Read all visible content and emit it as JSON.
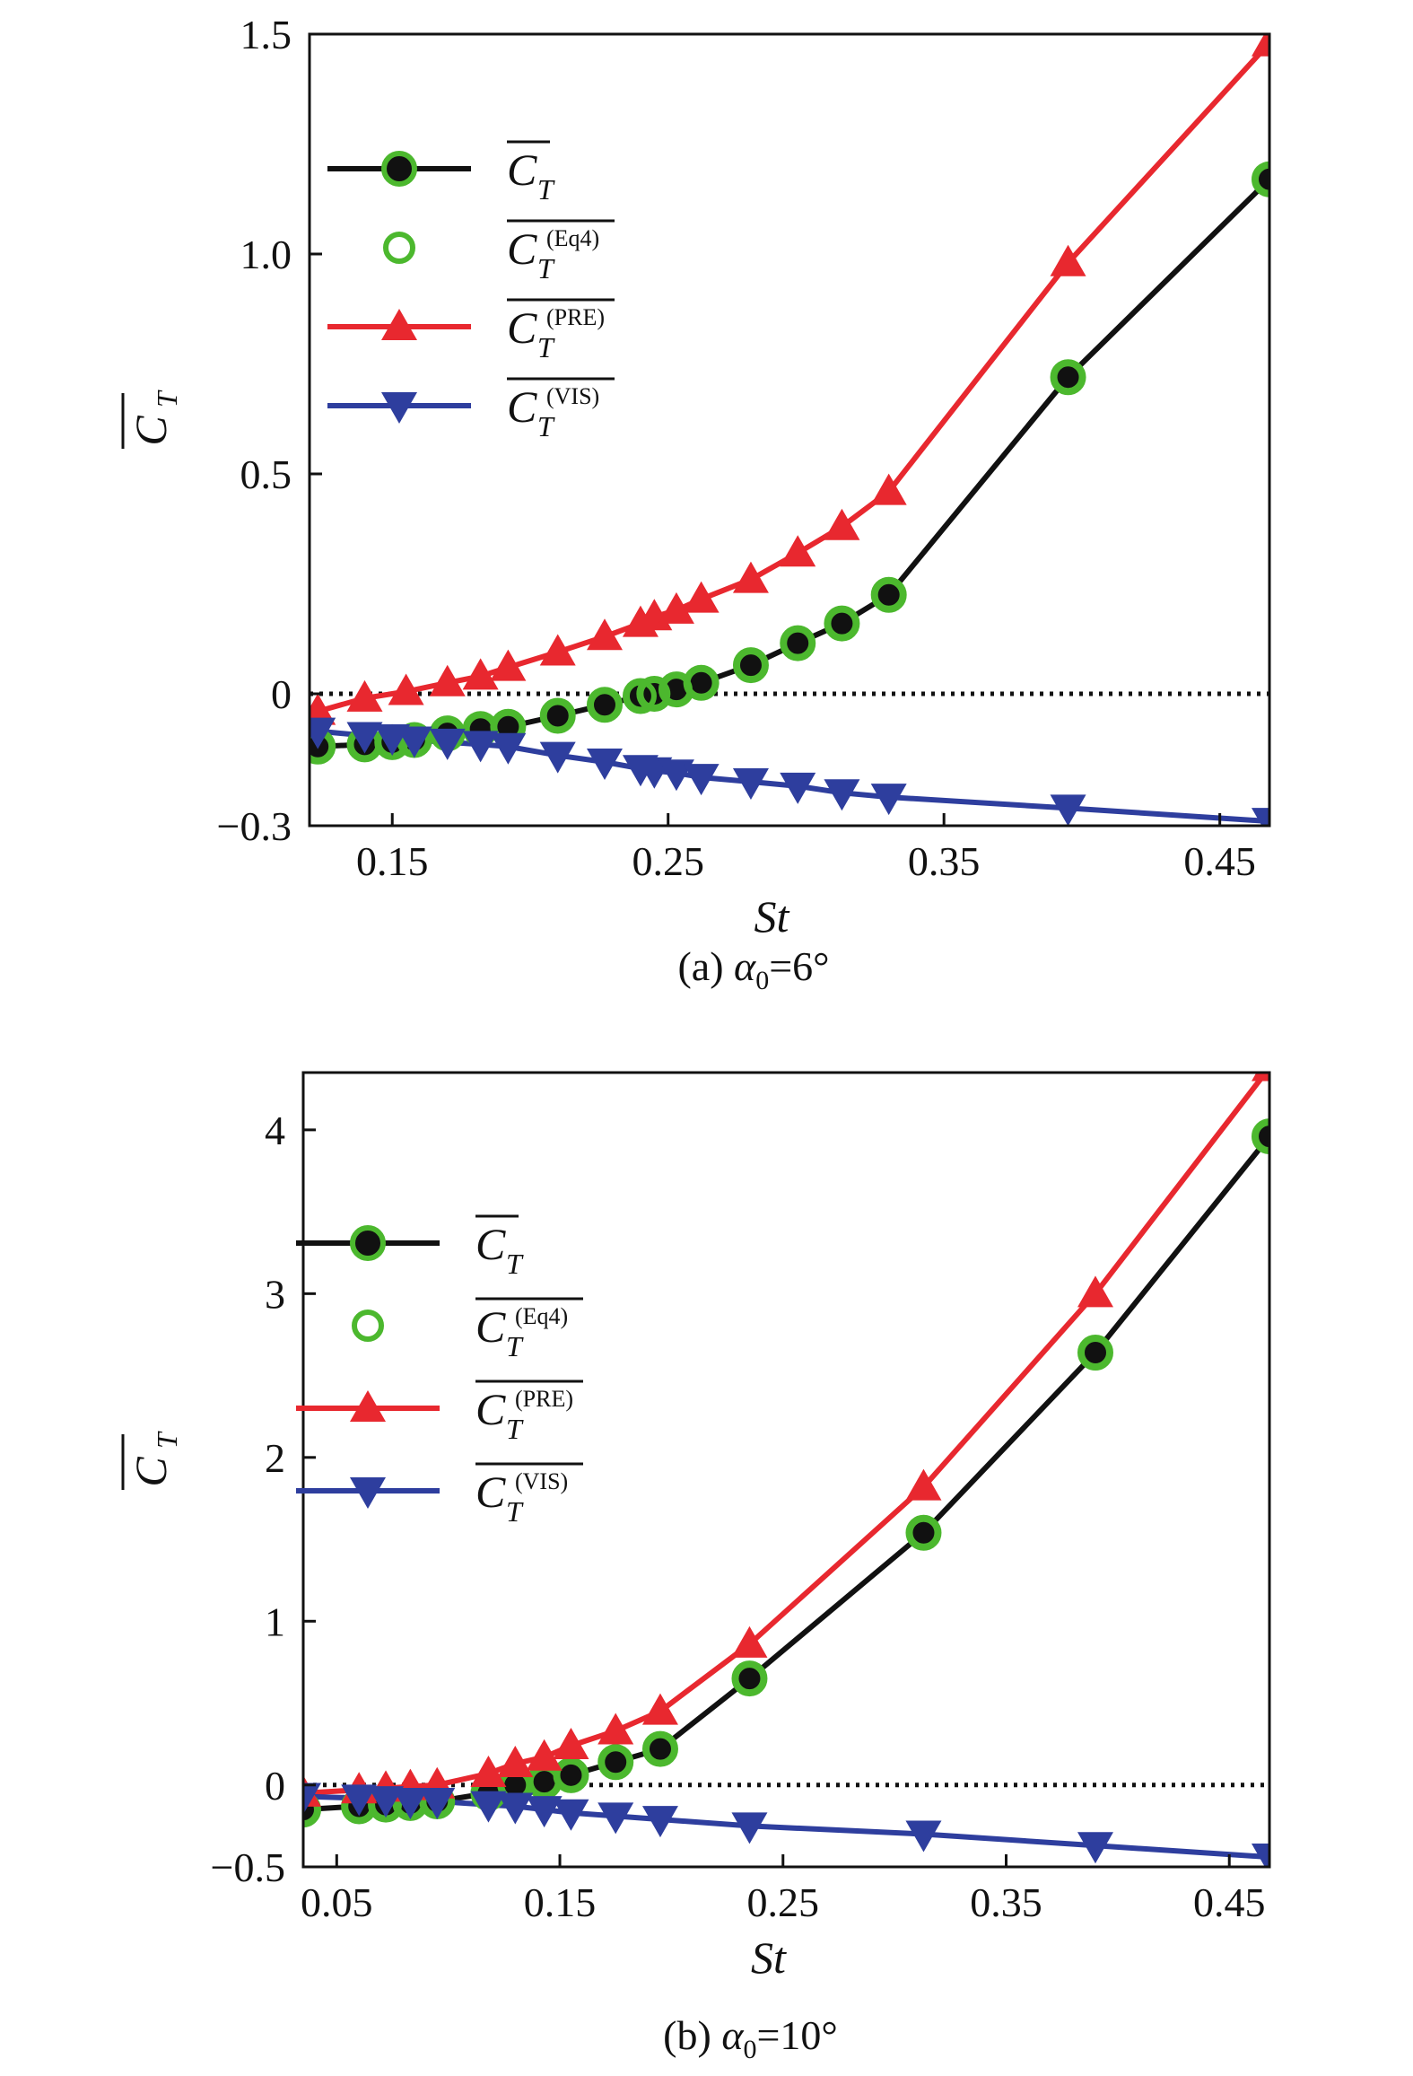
{
  "colors": {
    "ct": "#111111",
    "eq4": "#4cb82e",
    "pre": "#e8282f",
    "vis": "#2e3e9e",
    "axis": "#111111"
  },
  "chart_data": [
    {
      "type": "line",
      "caption": "(a) α₀=6°",
      "caption_prefix": "(a)",
      "caption_alpha": "α",
      "caption_sub": "0",
      "caption_value": "=6°",
      "xlabel": "St",
      "ylabel_main": "C",
      "ylabel_sub": "T",
      "xlim": [
        0.12,
        0.468
      ],
      "ylim": [
        -0.3,
        1.5
      ],
      "xticks": [
        0.15,
        0.25,
        0.35,
        0.45
      ],
      "xtick_labels": [
        "0.15",
        "0.25",
        "0.35",
        "0.45"
      ],
      "yticks": [
        -0.3,
        0,
        0.5,
        1.0,
        1.5
      ],
      "ytick_labels": [
        "−0.3",
        "0",
        "0.5",
        "1.0",
        "1.5"
      ],
      "zero_line": true,
      "legend": {
        "position": "upper-left",
        "entries": [
          {
            "key": "ct",
            "main": "C",
            "sub": "T",
            "sup": ""
          },
          {
            "key": "eq4",
            "main": "C",
            "sub": "T",
            "sup": "(Eq4)"
          },
          {
            "key": "pre",
            "main": "C",
            "sub": "T",
            "sup": "(PRE)"
          },
          {
            "key": "vis",
            "main": "C",
            "sub": "T",
            "sup": "(VIS)"
          }
        ]
      },
      "series": [
        {
          "key": "ct",
          "name": "C_T",
          "marker": "circle-filled",
          "x": [
            0.123,
            0.14,
            0.15,
            0.158,
            0.17,
            0.182,
            0.192,
            0.21,
            0.227,
            0.24,
            0.245,
            0.253,
            0.262,
            0.28,
            0.297,
            0.313,
            0.33,
            0.395,
            0.468
          ],
          "y": [
            -0.12,
            -0.115,
            -0.11,
            -0.105,
            -0.09,
            -0.08,
            -0.075,
            -0.05,
            -0.025,
            -0.005,
            0.0,
            0.01,
            0.025,
            0.065,
            0.115,
            0.16,
            0.225,
            0.72,
            1.17
          ]
        },
        {
          "key": "eq4",
          "name": "C_T^(Eq4)",
          "marker": "circle-open",
          "x": [
            0.123,
            0.14,
            0.15,
            0.158,
            0.17,
            0.182,
            0.192,
            0.21,
            0.227,
            0.24,
            0.245,
            0.253,
            0.262,
            0.28,
            0.297,
            0.313,
            0.33,
            0.395,
            0.468
          ],
          "y": [
            -0.12,
            -0.115,
            -0.11,
            -0.105,
            -0.09,
            -0.08,
            -0.075,
            -0.05,
            -0.025,
            -0.005,
            0.0,
            0.01,
            0.025,
            0.065,
            0.115,
            0.16,
            0.225,
            0.72,
            1.17
          ]
        },
        {
          "key": "pre",
          "name": "C_T^(PRE)",
          "marker": "triangle-up",
          "x": [
            0.123,
            0.14,
            0.155,
            0.17,
            0.182,
            0.192,
            0.21,
            0.227,
            0.24,
            0.245,
            0.253,
            0.262,
            0.28,
            0.297,
            0.313,
            0.33,
            0.395,
            0.468
          ],
          "y": [
            -0.04,
            -0.01,
            0.005,
            0.025,
            0.04,
            0.06,
            0.095,
            0.13,
            0.16,
            0.175,
            0.19,
            0.215,
            0.26,
            0.32,
            0.38,
            0.46,
            0.98,
            1.48
          ]
        },
        {
          "key": "vis",
          "name": "C_T^(VIS)",
          "marker": "triangle-down",
          "x": [
            0.123,
            0.14,
            0.15,
            0.158,
            0.17,
            0.182,
            0.192,
            0.21,
            0.227,
            0.24,
            0.245,
            0.253,
            0.262,
            0.28,
            0.297,
            0.313,
            0.33,
            0.395,
            0.468
          ],
          "y": [
            -0.085,
            -0.095,
            -0.1,
            -0.105,
            -0.11,
            -0.115,
            -0.12,
            -0.14,
            -0.155,
            -0.17,
            -0.175,
            -0.18,
            -0.19,
            -0.2,
            -0.21,
            -0.225,
            -0.235,
            -0.26,
            -0.29
          ]
        }
      ]
    },
    {
      "type": "line",
      "caption": "(b) α₀=10°",
      "caption_prefix": "(b)",
      "caption_alpha": "α",
      "caption_sub": "0",
      "caption_value": "=10°",
      "xlabel": "St",
      "ylabel_main": "C",
      "ylabel_sub": "T",
      "xlim": [
        0.035,
        0.468
      ],
      "ylim": [
        -0.5,
        4.35
      ],
      "xticks": [
        0.05,
        0.15,
        0.25,
        0.35,
        0.45
      ],
      "xtick_labels": [
        "0.05",
        "0.15",
        "0.25",
        "0.35",
        "0.45"
      ],
      "yticks": [
        -0.5,
        0,
        1,
        2,
        3,
        4
      ],
      "ytick_labels": [
        "−0.5",
        "0",
        "1",
        "2",
        "3",
        "4"
      ],
      "zero_line": true,
      "legend": {
        "position": "upper-left",
        "entries": [
          {
            "key": "ct",
            "main": "C",
            "sub": "T",
            "sup": ""
          },
          {
            "key": "eq4",
            "main": "C",
            "sub": "T",
            "sup": "(Eq4)"
          },
          {
            "key": "pre",
            "main": "C",
            "sub": "T",
            "sup": "(PRE)"
          },
          {
            "key": "vis",
            "main": "C",
            "sub": "T",
            "sup": "(VIS)"
          }
        ]
      },
      "series": [
        {
          "key": "ct",
          "name": "C_T",
          "marker": "circle-filled",
          "x": [
            0.035,
            0.06,
            0.072,
            0.083,
            0.095,
            0.118,
            0.13,
            0.143,
            0.155,
            0.175,
            0.195,
            0.235,
            0.313,
            0.39,
            0.468
          ],
          "y": [
            -0.15,
            -0.13,
            -0.12,
            -0.11,
            -0.1,
            -0.05,
            0.0,
            0.02,
            0.06,
            0.14,
            0.22,
            0.65,
            1.54,
            2.64,
            3.96
          ]
        },
        {
          "key": "eq4",
          "name": "C_T^(Eq4)",
          "marker": "circle-open",
          "x": [
            0.035,
            0.06,
            0.072,
            0.083,
            0.095,
            0.118,
            0.13,
            0.143,
            0.155,
            0.175,
            0.195,
            0.235,
            0.313,
            0.39,
            0.468
          ],
          "y": [
            -0.15,
            -0.13,
            -0.12,
            -0.11,
            -0.1,
            -0.05,
            0.0,
            0.02,
            0.06,
            0.14,
            0.22,
            0.65,
            1.54,
            2.64,
            3.96
          ]
        },
        {
          "key": "pre",
          "name": "C_T^(PRE)",
          "marker": "triangle-up",
          "x": [
            0.035,
            0.06,
            0.072,
            0.083,
            0.095,
            0.118,
            0.13,
            0.143,
            0.155,
            0.175,
            0.195,
            0.235,
            0.313,
            0.39,
            0.468
          ],
          "y": [
            -0.05,
            -0.03,
            -0.02,
            -0.01,
            0.0,
            0.07,
            0.13,
            0.17,
            0.24,
            0.33,
            0.45,
            0.86,
            1.82,
            3.0,
            4.38
          ]
        },
        {
          "key": "vis",
          "name": "C_T^(VIS)",
          "marker": "triangle-down",
          "x": [
            0.035,
            0.06,
            0.072,
            0.083,
            0.095,
            0.118,
            0.13,
            0.143,
            0.155,
            0.175,
            0.195,
            0.235,
            0.313,
            0.39,
            0.468
          ],
          "y": [
            -0.07,
            -0.08,
            -0.09,
            -0.1,
            -0.1,
            -0.12,
            -0.13,
            -0.15,
            -0.17,
            -0.19,
            -0.21,
            -0.25,
            -0.3,
            -0.37,
            -0.44
          ]
        }
      ]
    }
  ]
}
